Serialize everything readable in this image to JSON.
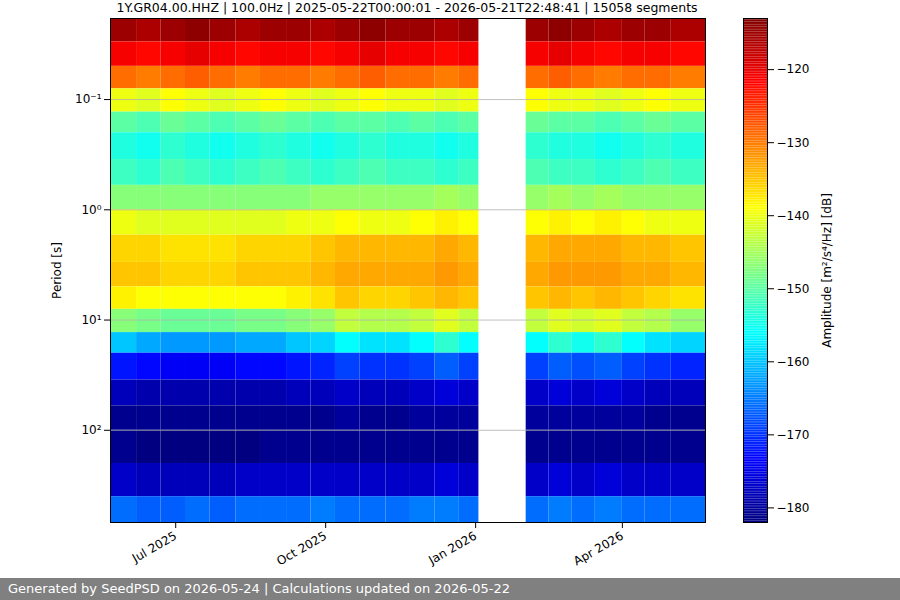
{
  "chart_data": {
    "type": "heatmap",
    "title": "1Y.GR04.00.HHZ | 100.0Hz | 2025-05-22T00:00:01 - 2026-05-21T22:48:41 | 15058 segments",
    "caption": "Generated by SeedPSD on 2026-05-24 | Calculations updated on 2026-05-22",
    "y_label": "Period [s]",
    "log": "y",
    "grid": "y",
    "color": "jet",
    "xlim": [
      "2025-05-22",
      "2026-05-22"
    ],
    "xticks": [
      {
        "value": "2025-07-01",
        "label": "Jul 2025"
      },
      {
        "value": "2025-10-01",
        "label": "Oct 2025"
      },
      {
        "value": "2026-01-01",
        "label": "Jan 2026"
      },
      {
        "value": "2026-04-01",
        "label": "Apr 2026"
      }
    ],
    "ylim": [
      0.0184,
      686
    ],
    "yticks": [
      {
        "value": 0.1,
        "label": "10⁻¹"
      },
      {
        "value": 1,
        "label": "10⁰"
      },
      {
        "value": 10,
        "label": "10¹"
      },
      {
        "value": 100,
        "label": "10²"
      }
    ],
    "x_bins": [
      "2025-05-22",
      "2025-06-07",
      "2025-06-22",
      "2025-07-07",
      "2025-07-22",
      "2025-08-07",
      "2025-08-22",
      "2025-09-07",
      "2025-09-22",
      "2025-10-07",
      "2025-10-22",
      "2025-11-07",
      "2025-11-22",
      "2025-12-07",
      "2025-12-22",
      "2026-01-03",
      "2026-01-17",
      "2026-02-01",
      "2026-02-15",
      "2026-03-01",
      "2026-03-15",
      "2026-04-01",
      "2026-04-15",
      "2026-05-01",
      "2026-05-22"
    ],
    "y_bins": [
      0.0184,
      0.03,
      0.05,
      0.08,
      0.13,
      0.2,
      0.35,
      0.6,
      1,
      1.7,
      3,
      5,
      8,
      13,
      20,
      35,
      60,
      100,
      200,
      400,
      686
    ],
    "values": [
      [
        -115,
        -116,
        -115,
        -114,
        -115,
        -116,
        -115,
        -115,
        -116,
        -115,
        -114,
        -115,
        -115,
        -116,
        -115,
        null,
        null,
        -115,
        -114,
        -115,
        -116,
        -115,
        -115,
        -116
      ],
      [
        -121,
        -122,
        -121,
        -120,
        -121,
        -122,
        -121,
        -121,
        -122,
        -121,
        -120,
        -121,
        -121,
        -122,
        -121,
        null,
        null,
        -121,
        -120,
        -121,
        -122,
        -121,
        -121,
        -122
      ],
      [
        -129,
        -130,
        -129,
        -128,
        -129,
        -130,
        -129,
        -129,
        -130,
        -129,
        -128,
        -129,
        -129,
        -130,
        -129,
        null,
        null,
        -129,
        -128,
        -129,
        -130,
        -129,
        -129,
        -130
      ],
      [
        -140,
        -141,
        -139,
        -140,
        -141,
        -140,
        -139,
        -140,
        -141,
        -140,
        -139,
        -140,
        -140,
        -141,
        -140,
        null,
        null,
        -139,
        -140,
        -140,
        -141,
        -140,
        -139,
        -140
      ],
      [
        -150,
        -151,
        -149,
        -150,
        -151,
        -150,
        -149,
        -150,
        -151,
        -150,
        -150,
        -151,
        -150,
        -151,
        -150,
        null,
        null,
        -149,
        -150,
        -150,
        -151,
        -150,
        -149,
        -150
      ],
      [
        -154,
        -155,
        -153,
        -154,
        -155,
        -154,
        -153,
        -154,
        -155,
        -154,
        -153,
        -154,
        -154,
        -155,
        -154,
        null,
        null,
        -153,
        -154,
        -154,
        -155,
        -154,
        -153,
        -154
      ],
      [
        -152,
        -153,
        -151,
        -152,
        -153,
        -152,
        -151,
        -152,
        -153,
        -152,
        -151,
        -152,
        -152,
        -153,
        -152,
        null,
        null,
        -151,
        -152,
        -152,
        -153,
        -152,
        -151,
        -152
      ],
      [
        -147,
        -147,
        -147,
        -147,
        -147,
        -147,
        -147,
        -147,
        -146,
        -146,
        -146,
        -146,
        -146,
        -145,
        -146,
        null,
        null,
        -146,
        -145,
        -146,
        -145,
        -146,
        -146,
        -146
      ],
      [
        -140,
        -141,
        -141,
        -141,
        -141,
        -141,
        -141,
        -140,
        -140,
        -139,
        -140,
        -140,
        -139,
        -138,
        -139,
        null,
        null,
        -139,
        -138,
        -139,
        -138,
        -139,
        -140,
        -140
      ],
      [
        -136,
        -136,
        -137,
        -137,
        -137,
        -136,
        -136,
        -136,
        -135,
        -134,
        -134,
        -134,
        -134,
        -133,
        -134,
        null,
        null,
        -134,
        -133,
        -133,
        -133,
        -134,
        -134,
        -135
      ],
      [
        -135,
        -135,
        -136,
        -136,
        -136,
        -135,
        -135,
        -135,
        -134,
        -133,
        -133,
        -133,
        -133,
        -132,
        -133,
        null,
        null,
        -133,
        -132,
        -132,
        -132,
        -133,
        -133,
        -134
      ],
      [
        -138,
        -139,
        -139,
        -139,
        -139,
        -139,
        -139,
        -138,
        -137,
        -135,
        -136,
        -136,
        -135,
        -134,
        -135,
        null,
        null,
        -135,
        -134,
        -135,
        -134,
        -135,
        -136,
        -137
      ],
      [
        -147,
        -148,
        -149,
        -149,
        -149,
        -148,
        -148,
        -147,
        -146,
        -143,
        -144,
        -144,
        -143,
        -141,
        -143,
        null,
        null,
        -143,
        -141,
        -142,
        -141,
        -143,
        -144,
        -146
      ],
      [
        -160,
        -162,
        -163,
        -163,
        -163,
        -162,
        -162,
        -160,
        -159,
        -156,
        -158,
        -158,
        -156,
        -153,
        -156,
        null,
        null,
        -156,
        -153,
        -155,
        -153,
        -156,
        -158,
        -159
      ],
      [
        -172,
        -173,
        -174,
        -174,
        -174,
        -173,
        -173,
        -172,
        -171,
        -169,
        -170,
        -170,
        -169,
        -167,
        -169,
        null,
        null,
        -169,
        -167,
        -168,
        -167,
        -169,
        -170,
        -171
      ],
      [
        -178,
        -179,
        -179,
        -179,
        -179,
        -179,
        -179,
        -178,
        -178,
        -177,
        -178,
        -178,
        -177,
        -176,
        -177,
        null,
        null,
        -177,
        -176,
        -177,
        -176,
        -177,
        -178,
        -178
      ],
      [
        -181,
        -181,
        -181,
        -181,
        -181,
        -181,
        -181,
        -181,
        -181,
        -180,
        -181,
        -181,
        -180,
        -180,
        -180,
        null,
        null,
        -180,
        -180,
        -180,
        -180,
        -180,
        -181,
        -181
      ],
      [
        -181,
        -182,
        -182,
        -182,
        -182,
        -182,
        -181,
        -181,
        -181,
        -181,
        -181,
        -181,
        -181,
        -181,
        -181,
        null,
        null,
        -181,
        -181,
        -181,
        -181,
        -181,
        -181,
        -181
      ],
      [
        -177,
        -178,
        -178,
        -178,
        -178,
        -177,
        -177,
        -177,
        -177,
        -177,
        -177,
        -177,
        -177,
        -176,
        -177,
        null,
        null,
        -177,
        -176,
        -177,
        -176,
        -177,
        -177,
        -177
      ],
      [
        -166,
        -167,
        -167,
        -166,
        -167,
        -166,
        -166,
        -166,
        -165,
        -166,
        -166,
        -166,
        -165,
        -165,
        -166,
        null,
        null,
        -166,
        -165,
        -166,
        -165,
        -166,
        -166,
        -166
      ]
    ],
    "colorbar": {
      "label": "Amplitude [m²/s⁴/Hz] [dB]",
      "lim": [
        -182,
        -113
      ],
      "ticks": [
        {
          "value": -180,
          "label": "−180"
        },
        {
          "value": -170,
          "label": "−170"
        },
        {
          "value": -160,
          "label": "−160"
        },
        {
          "value": -150,
          "label": "−150"
        },
        {
          "value": -140,
          "label": "−140"
        },
        {
          "value": -130,
          "label": "−130"
        },
        {
          "value": -120,
          "label": "−120"
        }
      ]
    }
  }
}
